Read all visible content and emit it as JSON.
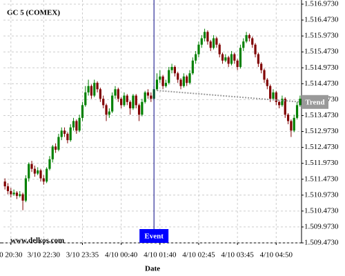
{
  "chart_data": {
    "type": "candlestick",
    "title": "GC 5 (COMEX)",
    "watermark": "www.delkos.com",
    "x_label": "Date",
    "categories": [
      null,
      null,
      "0 20:30",
      null,
      null,
      null,
      null,
      null,
      null,
      null,
      null,
      null,
      null,
      "3/10 22:30",
      null,
      null,
      null,
      null,
      null,
      null,
      null,
      null,
      null,
      null,
      null,
      null,
      "3/10 23:35",
      null,
      null,
      null,
      null,
      null,
      null,
      null,
      null,
      null,
      null,
      null,
      null,
      "4/10 00:40",
      null,
      null,
      null,
      null,
      null,
      null,
      null,
      null,
      null,
      null,
      null,
      null,
      "4/10 01:40",
      null,
      null,
      null,
      null,
      null,
      null,
      null,
      null,
      null,
      null,
      null,
      null,
      "4/10 02:45",
      null,
      null,
      null,
      null,
      null,
      null,
      null,
      null,
      null,
      null,
      null,
      null,
      "4/10 03:45",
      null,
      null,
      null,
      null,
      null,
      null,
      null,
      null,
      null,
      null,
      null,
      null,
      "4/10 04:50",
      null,
      null,
      null,
      null,
      null,
      null,
      null,
      null
    ],
    "open": [
      1.5114,
      1.51125,
      1.5111,
      1.511,
      1.51105,
      1.51095,
      1.511,
      1.5108,
      1.5115,
      1.51195,
      1.5118,
      1.51165,
      1.51175,
      1.5115,
      1.5114,
      1.5118,
      1.5121,
      1.5125,
      1.5124,
      1.5128,
      1.513,
      1.5129,
      1.5127,
      1.5131,
      1.5133,
      1.513,
      1.5134,
      1.5138,
      1.5142,
      1.5144,
      1.5141,
      1.5145,
      1.5143,
      1.514,
      1.5138,
      1.5135,
      1.5136,
      1.5141,
      1.5143,
      1.514,
      1.5138,
      1.5141,
      1.5139,
      1.5137,
      1.5141,
      1.5138,
      1.5135,
      1.5139,
      1.5142,
      1.5141,
      1.514,
      1.5143,
      1.5146,
      1.5147,
      1.5144,
      1.5145,
      1.5149,
      1.515,
      1.5148,
      1.5146,
      1.5144,
      1.5147,
      1.5145,
      1.5148,
      1.5152,
      1.5154,
      1.5157,
      1.5159,
      1.5161,
      1.5158,
      1.5156,
      1.5159,
      1.5157,
      1.5154,
      1.5152,
      1.5153,
      1.5151,
      1.5154,
      1.5152,
      1.515,
      1.5156,
      1.5158,
      1.516,
      1.5159,
      1.5157,
      1.5154,
      1.5151,
      1.5149,
      1.5146,
      1.5144,
      1.514,
      1.5142,
      1.5139,
      1.5138,
      1.514,
      1.5135,
      1.5133,
      1.513,
      1.5134,
      1.5138
    ],
    "high": [
      1.5115,
      1.51135,
      1.5112,
      1.51115,
      1.5111,
      1.5111,
      1.51105,
      1.5116,
      1.512,
      1.51205,
      1.5119,
      1.51185,
      1.5118,
      1.5116,
      1.51185,
      1.5122,
      1.51255,
      1.5126,
      1.5129,
      1.5131,
      1.5131,
      1.51295,
      1.5132,
      1.5134,
      1.51335,
      1.5135,
      1.5139,
      1.5144,
      1.5146,
      1.51445,
      1.5146,
      1.51455,
      1.51435,
      1.5141,
      1.51385,
      1.5137,
      1.5142,
      1.5144,
      1.51435,
      1.51405,
      1.5142,
      1.51415,
      1.51395,
      1.51415,
      1.51415,
      1.51385,
      1.514,
      1.51425,
      1.5143,
      1.5142,
      1.5144,
      1.5148,
      1.5149,
      1.51475,
      1.5146,
      1.515,
      1.5151,
      1.51505,
      1.51485,
      1.51465,
      1.5148,
      1.51475,
      1.5149,
      1.5153,
      1.5155,
      1.5158,
      1.516,
      1.5162,
      1.51615,
      1.51585,
      1.516,
      1.51595,
      1.51575,
      1.51545,
      1.5154,
      1.51535,
      1.5155,
      1.51545,
      1.51525,
      1.5157,
      1.5159,
      1.5161,
      1.51605,
      1.51595,
      1.51575,
      1.51545,
      1.51515,
      1.51495,
      1.51465,
      1.51445,
      1.5143,
      1.51425,
      1.51395,
      1.5141,
      1.51405,
      1.51355,
      1.51335,
      1.5135,
      1.5139,
      1.5141
    ],
    "low": [
      1.51115,
      1.511,
      1.5109,
      1.51095,
      1.51085,
      1.5109,
      1.5105,
      1.51075,
      1.5114,
      1.5117,
      1.51155,
      1.5116,
      1.5114,
      1.5113,
      1.51135,
      1.51175,
      1.512,
      1.5123,
      1.51235,
      1.5127,
      1.5128,
      1.5126,
      1.51265,
      1.513,
      1.5129,
      1.51295,
      1.5133,
      1.51375,
      1.5141,
      1.514,
      1.51405,
      1.5142,
      1.5139,
      1.5137,
      1.5133,
      1.5134,
      1.51355,
      1.514,
      1.5139,
      1.5137,
      1.51375,
      1.5138,
      1.5135,
      1.51365,
      1.5137,
      1.5133,
      1.51345,
      1.51385,
      1.514,
      1.5139,
      1.51395,
      1.51425,
      1.5145,
      1.5143,
      1.51435,
      1.51445,
      1.5148,
      1.5147,
      1.5145,
      1.5143,
      1.51435,
      1.5144,
      1.51445,
      1.51475,
      1.5151,
      1.5153,
      1.5156,
      1.5158,
      1.5157,
      1.5155,
      1.51555,
      1.5156,
      1.5153,
      1.5151,
      1.51515,
      1.515,
      1.51505,
      1.5151,
      1.5149,
      1.51495,
      1.5155,
      1.51575,
      1.5158,
      1.5156,
      1.5153,
      1.515,
      1.5148,
      1.5145,
      1.5143,
      1.5139,
      1.51395,
      1.5138,
      1.5137,
      1.51375,
      1.5134,
      1.5132,
      1.5128,
      1.51295,
      1.51335,
      1.51375
    ],
    "close": [
      1.51125,
      1.5111,
      1.511,
      1.51105,
      1.51095,
      1.511,
      1.5108,
      1.5115,
      1.51195,
      1.5118,
      1.51165,
      1.51175,
      1.5115,
      1.5114,
      1.5118,
      1.5121,
      1.5125,
      1.5124,
      1.5128,
      1.513,
      1.5129,
      1.5127,
      1.5131,
      1.5133,
      1.513,
      1.5134,
      1.5138,
      1.5142,
      1.5144,
      1.5141,
      1.5145,
      1.5143,
      1.514,
      1.5138,
      1.5135,
      1.5136,
      1.5141,
      1.5143,
      1.514,
      1.5138,
      1.5141,
      1.5139,
      1.5137,
      1.5141,
      1.5138,
      1.5135,
      1.5139,
      1.5142,
      1.5141,
      1.514,
      1.5143,
      1.5146,
      1.5147,
      1.5144,
      1.5145,
      1.5149,
      1.515,
      1.5148,
      1.5146,
      1.5144,
      1.5147,
      1.5145,
      1.5148,
      1.5152,
      1.5154,
      1.5157,
      1.5159,
      1.5161,
      1.5158,
      1.5156,
      1.5159,
      1.5157,
      1.5154,
      1.5152,
      1.5153,
      1.5151,
      1.5154,
      1.5152,
      1.515,
      1.5156,
      1.5158,
      1.516,
      1.5159,
      1.5157,
      1.5154,
      1.5151,
      1.5149,
      1.5146,
      1.5144,
      1.514,
      1.5142,
      1.5139,
      1.5138,
      1.514,
      1.5135,
      1.5133,
      1.513,
      1.5134,
      1.5138,
      1.514
    ],
    "up_color": "#008000",
    "down_color": "#800000",
    "ylim": [
      1.509473,
      1.516973
    ],
    "yticks": [
      {
        "value": 1.509473,
        "label": "1.509.4730"
      },
      {
        "value": 1.509973,
        "label": "1.509.9730"
      },
      {
        "value": 1.510473,
        "label": "1.510.4730"
      },
      {
        "value": 1.510973,
        "label": "1.510.9730"
      },
      {
        "value": 1.511473,
        "label": "1.511.4730"
      },
      {
        "value": 1.511973,
        "label": "1.511.9730"
      },
      {
        "value": 1.512473,
        "label": "1.512.4730"
      },
      {
        "value": 1.512973,
        "label": "1.512.9730"
      },
      {
        "value": 1.513473,
        "label": "1.513.4730"
      },
      {
        "value": 1.513973,
        "label": "1.513.9730"
      },
      {
        "value": 1.514473,
        "label": "1.514.4730"
      },
      {
        "value": 1.514973,
        "label": "1.514.9730"
      },
      {
        "value": 1.515473,
        "label": "1.515.4730"
      },
      {
        "value": 1.515973,
        "label": "1.515.9730"
      },
      {
        "value": 1.516473,
        "label": "1.516.4730"
      },
      {
        "value": 1.516973,
        "label": "1.516.9730"
      }
    ],
    "grid": true,
    "event": {
      "label": "Event",
      "x": 50,
      "color": "#0000ff"
    },
    "trend": {
      "label": "Trend",
      "x": [
        51,
        99
      ],
      "y": [
        1.51426,
        1.5139
      ],
      "color": "#999999"
    }
  }
}
